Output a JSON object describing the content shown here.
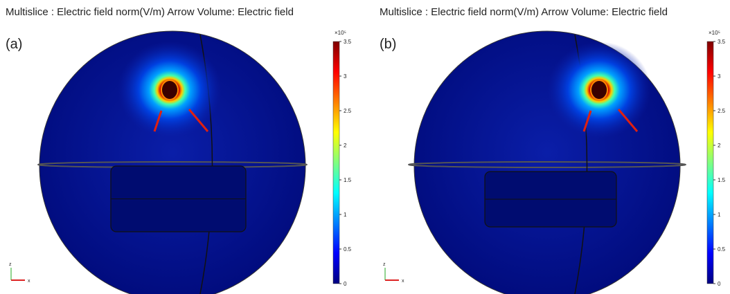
{
  "panels": [
    {
      "title": "Multislice : Electric field norm(V/m) Arrow Volume: Electric field",
      "label": "(a)",
      "colorbar": {
        "multiplier": "×10⁵",
        "range": [
          0,
          3.5
        ],
        "ticks": [
          0,
          0.5,
          1,
          1.5,
          2,
          2.5,
          3,
          3.5
        ]
      },
      "axes": {
        "z": "z",
        "x": "x"
      }
    },
    {
      "title": "Multislice : Electric field norm(V/m) Arrow Volume: Electric field",
      "label": "(b)",
      "colorbar": {
        "multiplier": "×10⁵",
        "range": [
          0,
          3.5
        ],
        "ticks": [
          0,
          0.5,
          1,
          1.5,
          2,
          2.5,
          3,
          3.5
        ]
      },
      "axes": {
        "z": "z",
        "x": "x"
      }
    }
  ]
}
